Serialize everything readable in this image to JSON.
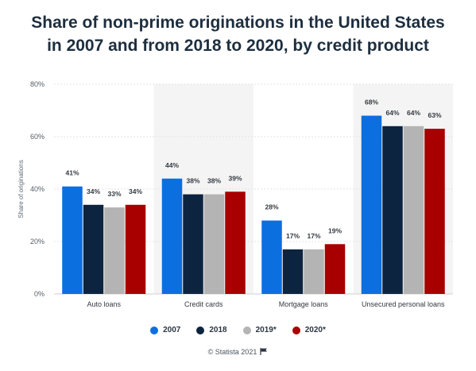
{
  "chart_data": {
    "type": "bar",
    "title": "Share of non-prime originations in the United States\nin 2007 and from 2018 to 2020, by credit product",
    "ylabel": "Share of originations",
    "xlabel": "",
    "ylim": [
      0,
      80
    ],
    "yticks": [
      "0%",
      "20%",
      "40%",
      "60%",
      "80%"
    ],
    "ytick_values": [
      0,
      20,
      40,
      60,
      80
    ],
    "categories": [
      "Auto loans",
      "Credit cards",
      "Mortgage loans",
      "Unsecured personal loans"
    ],
    "series": [
      {
        "name": "2007",
        "color": "#0b6fe0",
        "values": [
          41,
          44,
          28,
          68
        ],
        "labels": [
          "41%",
          "44%",
          "28%",
          "68%"
        ]
      },
      {
        "name": "2018",
        "color": "#0d2440",
        "values": [
          34,
          38,
          17,
          64
        ],
        "labels": [
          "34%",
          "38%",
          "17%",
          "64%"
        ]
      },
      {
        "name": "2019*",
        "color": "#b4b4b4",
        "values": [
          33,
          38,
          17,
          64
        ],
        "labels": [
          "33%",
          "38%",
          "17%",
          "64%"
        ]
      },
      {
        "name": "2020*",
        "color": "#a80000",
        "values": [
          34,
          39,
          19,
          63
        ],
        "labels": [
          "34%",
          "39%",
          "19%",
          "63%"
        ]
      }
    ],
    "grid": true,
    "legend_position": "bottom"
  },
  "credit": "© Statista 2021",
  "icons": {
    "flag": "flag-icon"
  }
}
